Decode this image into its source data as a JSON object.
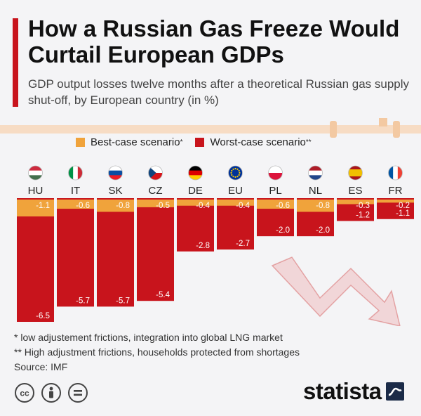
{
  "header": {
    "title": "How a Russian Gas Freeze Would Curtail European GDPs",
    "subtitle": "GDP output losses twelve months after a theoretical Russian gas supply shut-off, by European country (in %)"
  },
  "legend": {
    "best_label": "Best-case scenario",
    "best_mark": "*",
    "worst_label": "Worst-case scenario",
    "worst_mark": "**"
  },
  "chart_data": {
    "type": "bar",
    "categories": [
      "HU",
      "IT",
      "SK",
      "CZ",
      "DE",
      "EU",
      "PL",
      "NL",
      "ES",
      "FR"
    ],
    "series": [
      {
        "name": "Best-case scenario",
        "values": [
          -1.1,
          -0.6,
          -0.8,
          -0.5,
          -0.4,
          -0.4,
          -0.6,
          -0.8,
          -0.3,
          -0.2
        ]
      },
      {
        "name": "Worst-case scenario",
        "values": [
          -6.5,
          -5.7,
          -5.7,
          -5.4,
          -2.8,
          -2.7,
          -2.0,
          -2.0,
          -1.2,
          -1.1
        ]
      }
    ],
    "value_labels": {
      "best": [
        "-1.1",
        "-0.6",
        "-0.8",
        "-0.5",
        "-0.4",
        "-0.4",
        "-0.6",
        "-0.8",
        "-0.3",
        "-0.2"
      ],
      "worst": [
        "-6.5",
        "-5.7",
        "-5.7",
        "-5.4",
        "-2.8",
        "-2.7",
        "-2.0",
        "-2.0",
        "-1.2",
        "-1.1"
      ]
    },
    "ylim": [
      -6.5,
      0
    ],
    "orientation": "vertical, downward from zero",
    "colors": {
      "best": "#f0a33b",
      "worst": "#c8141c"
    }
  },
  "notes": {
    "note1": "*  low adjustement frictions, integration into global LNG market",
    "note2": "** High adjustment frictions, households protected from shortages",
    "source": "Source: IMF"
  },
  "brand": {
    "name": "statista"
  },
  "icons": [
    "hungary-flag-icon",
    "italy-flag-icon",
    "slovakia-flag-icon",
    "czech-flag-icon",
    "germany-flag-icon",
    "eu-flag-icon",
    "poland-flag-icon",
    "netherlands-flag-icon",
    "spain-flag-icon",
    "france-flag-icon",
    "creative-commons-icon",
    "attribution-icon",
    "equals-icon",
    "statista-logo-icon"
  ]
}
